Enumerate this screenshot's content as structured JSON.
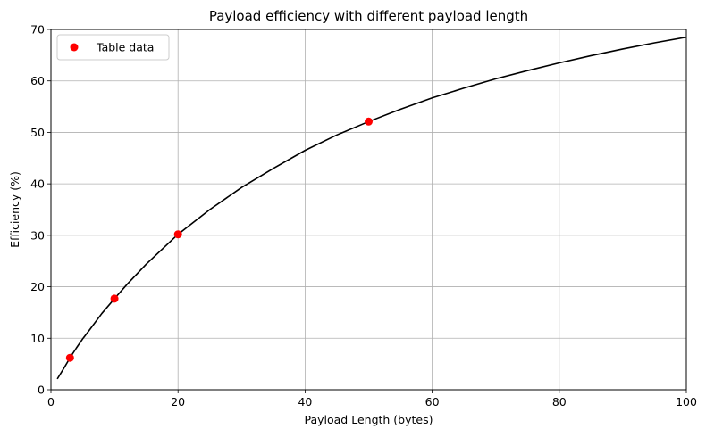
{
  "chart_data": {
    "type": "line",
    "title": "Payload efficiency with different payload length",
    "xlabel": "Payload Length (bytes)",
    "ylabel": "Efficiency (%)",
    "xlim": [
      0,
      100
    ],
    "ylim": [
      0,
      70
    ],
    "xticks": [
      0,
      20,
      40,
      60,
      80,
      100
    ],
    "yticks": [
      0,
      10,
      20,
      30,
      40,
      50,
      60,
      70
    ],
    "grid": true,
    "legend_position": "top-left",
    "series": [
      {
        "kind": "curve",
        "color": "#000000",
        "x": [
          1,
          2,
          3,
          4,
          5,
          6,
          8,
          10,
          12,
          15,
          20,
          25,
          30,
          35,
          40,
          45,
          50,
          55,
          60,
          65,
          70,
          75,
          80,
          85,
          90,
          95,
          100
        ],
        "y": [
          2.1,
          4.1,
          6.2,
          8.1,
          9.9,
          11.5,
          14.8,
          17.7,
          20.5,
          24.4,
          30.2,
          35.0,
          39.3,
          43.0,
          46.5,
          49.5,
          52.1,
          54.5,
          56.7,
          58.6,
          60.4,
          62.0,
          63.5,
          64.9,
          66.2,
          67.4,
          68.5
        ]
      },
      {
        "kind": "scatter",
        "name": "Table data",
        "color": "#ff0000",
        "x": [
          3,
          10,
          20,
          50
        ],
        "y": [
          6.2,
          17.7,
          30.2,
          52.1
        ]
      }
    ]
  }
}
